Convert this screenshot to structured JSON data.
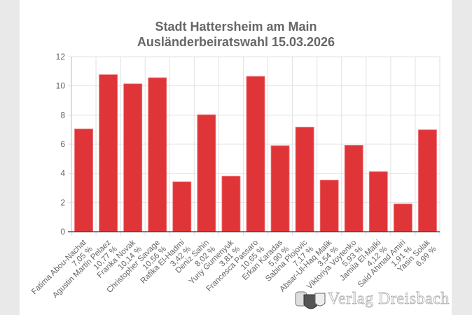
{
  "chart_data": {
    "type": "bar",
    "title": [
      "Stadt Hattersheim am Main",
      "Ausländerbeiratswahl 15.03.2026"
    ],
    "categories": [
      "Fatima Abou-Nachat",
      "Agustin Martin Pelaez",
      "Franka Novak",
      "Christopher Savage",
      "Rafika El-Hadmi",
      "Deniz Sahin",
      "Yuriy Gumenyuk",
      "Francesca Passaro",
      "Erkan Karadas",
      "Sabina Plojovic",
      "Absar-Ul-Haq Malik",
      "Viktoriya Voytenko",
      "Jamila El-Malki",
      "Said Ahmad Amiri",
      "Yasin Solak"
    ],
    "values": [
      7.05,
      10.77,
      10.14,
      10.56,
      3.42,
      8.02,
      3.81,
      10.65,
      5.9,
      7.17,
      3.54,
      5.93,
      4.12,
      1.91,
      6.99
    ],
    "value_labels": [
      "7,05 %",
      "10,77 %",
      "10,14 %",
      "10,56 %",
      "3,42 %",
      "8,02 %",
      "3,81 %",
      "10,65 %",
      "5,90 %",
      "7,17 %",
      "3,54 %",
      "5,93 %",
      "4,12 %",
      "1,91 %",
      "6,99 %"
    ],
    "ylim": [
      0,
      12
    ],
    "yticks": [
      0,
      2,
      4,
      6,
      8,
      10,
      12
    ],
    "grid": true,
    "bar_color": "#e03538",
    "legend": "none"
  },
  "watermark": {
    "text": "Verlag Dreisbach"
  }
}
